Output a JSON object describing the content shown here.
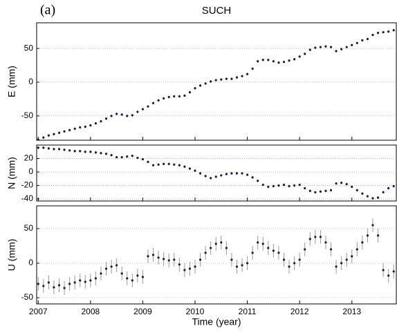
{
  "chart_data": [
    {
      "type": "scatter",
      "panel_label": "(a)",
      "title": "SUCH",
      "ylabel": "E (mm)",
      "color": "#1a1a4e",
      "error_color": "#999999",
      "error": 2,
      "grid": true,
      "xlim": [
        2006.97,
        2013.85
      ],
      "xticks": [
        2007,
        2008,
        2009,
        2010,
        2011,
        2012,
        2013
      ],
      "ylim": [
        -86,
        88
      ],
      "yticks": [
        -50,
        0,
        50
      ],
      "x": [
        2007.0,
        2007.1,
        2007.2,
        2007.3,
        2007.4,
        2007.5,
        2007.6,
        2007.7,
        2007.8,
        2007.9,
        2008.0,
        2008.1,
        2008.2,
        2008.3,
        2008.4,
        2008.5,
        2008.6,
        2008.7,
        2008.8,
        2008.9,
        2009.0,
        2009.1,
        2009.2,
        2009.3,
        2009.4,
        2009.5,
        2009.6,
        2009.7,
        2009.8,
        2009.9,
        2010.0,
        2010.1,
        2010.2,
        2010.3,
        2010.4,
        2010.5,
        2010.6,
        2010.7,
        2010.8,
        2010.9,
        2011.0,
        2011.1,
        2011.2,
        2011.3,
        2011.4,
        2011.5,
        2011.6,
        2011.7,
        2011.8,
        2011.9,
        2012.0,
        2012.1,
        2012.2,
        2012.3,
        2012.4,
        2012.5,
        2012.6,
        2012.7,
        2012.8,
        2012.9,
        2013.0,
        2013.1,
        2013.2,
        2013.3,
        2013.4,
        2013.5,
        2013.6,
        2013.7,
        2013.8
      ],
      "values": [
        -85,
        -82,
        -79,
        -77,
        -75,
        -73,
        -71,
        -69,
        -67,
        -66,
        -64,
        -61,
        -58,
        -54,
        -50,
        -47,
        -48,
        -50,
        -49,
        -44,
        -40,
        -36,
        -31,
        -27,
        -24,
        -22,
        -21,
        -21,
        -20,
        -15,
        -9,
        -5,
        -2,
        1,
        3,
        4,
        5,
        5,
        7,
        9,
        12,
        20,
        31,
        33,
        33,
        31,
        29,
        30,
        32,
        34,
        38,
        42,
        48,
        51,
        52,
        53,
        52,
        46,
        49,
        52,
        55,
        58,
        62,
        64,
        70,
        73,
        74,
        75,
        77
      ]
    },
    {
      "type": "scatter",
      "ylabel": "N (mm)",
      "color": "#1a1a4e",
      "error_color": "#999999",
      "error": 2,
      "grid": true,
      "xlim": [
        2006.97,
        2013.85
      ],
      "xticks": [
        2007,
        2008,
        2009,
        2010,
        2011,
        2012,
        2013
      ],
      "ylim": [
        -43,
        40
      ],
      "yticks": [
        -40,
        -20,
        0,
        20
      ],
      "x": [
        2007.0,
        2007.1,
        2007.2,
        2007.3,
        2007.4,
        2007.5,
        2007.6,
        2007.7,
        2007.8,
        2007.9,
        2008.0,
        2008.1,
        2008.2,
        2008.3,
        2008.4,
        2008.5,
        2008.6,
        2008.7,
        2008.8,
        2008.9,
        2009.0,
        2009.1,
        2009.2,
        2009.3,
        2009.4,
        2009.5,
        2009.6,
        2009.7,
        2009.8,
        2009.9,
        2010.0,
        2010.1,
        2010.2,
        2010.3,
        2010.4,
        2010.5,
        2010.6,
        2010.7,
        2010.8,
        2010.9,
        2011.0,
        2011.1,
        2011.2,
        2011.3,
        2011.4,
        2011.5,
        2011.6,
        2011.7,
        2011.8,
        2011.9,
        2012.0,
        2012.1,
        2012.2,
        2012.3,
        2012.4,
        2012.5,
        2012.6,
        2012.7,
        2012.8,
        2012.9,
        2013.0,
        2013.1,
        2013.2,
        2013.3,
        2013.4,
        2013.5,
        2013.6,
        2013.7,
        2013.8
      ],
      "values": [
        36,
        36,
        35,
        34,
        34,
        33,
        32,
        31,
        31,
        30,
        30,
        29,
        28,
        27,
        25,
        22,
        22,
        23,
        24,
        21,
        19,
        15,
        10,
        11,
        12,
        12,
        11,
        10,
        8,
        5,
        2,
        -2,
        -6,
        -9,
        -7,
        -5,
        -3,
        -2,
        -2,
        -2,
        -4,
        -8,
        -13,
        -19,
        -22,
        -21,
        -20,
        -19,
        -21,
        -20,
        -19,
        -24,
        -28,
        -30,
        -29,
        -28,
        -27,
        -17,
        -16,
        -18,
        -22,
        -27,
        -32,
        -36,
        -39,
        -38,
        -30,
        -24,
        -21
      ]
    },
    {
      "type": "scatter",
      "ylabel": "U (mm)",
      "xlabel": "Time (year)",
      "color": "#1a1a4e",
      "error_color": "#999999",
      "error": 10,
      "grid": true,
      "xlim": [
        2006.97,
        2013.85
      ],
      "xticks": [
        2007,
        2008,
        2009,
        2010,
        2011,
        2012,
        2013
      ],
      "ylim": [
        -59,
        83
      ],
      "yticks": [
        -50,
        0,
        50
      ],
      "x": [
        2007.0,
        2007.1,
        2007.2,
        2007.3,
        2007.4,
        2007.5,
        2007.6,
        2007.7,
        2007.8,
        2007.9,
        2008.0,
        2008.1,
        2008.2,
        2008.3,
        2008.4,
        2008.5,
        2008.6,
        2008.7,
        2008.8,
        2008.9,
        2009.0,
        2009.1,
        2009.2,
        2009.3,
        2009.4,
        2009.5,
        2009.6,
        2009.7,
        2009.8,
        2009.9,
        2010.0,
        2010.1,
        2010.2,
        2010.3,
        2010.4,
        2010.5,
        2010.6,
        2010.7,
        2010.8,
        2010.9,
        2011.0,
        2011.1,
        2011.2,
        2011.3,
        2011.4,
        2011.5,
        2011.6,
        2011.7,
        2011.8,
        2011.9,
        2012.0,
        2012.1,
        2012.2,
        2012.3,
        2012.4,
        2012.5,
        2012.6,
        2012.7,
        2012.8,
        2012.9,
        2013.0,
        2013.1,
        2013.2,
        2013.3,
        2013.4,
        2013.5,
        2013.6,
        2013.7,
        2013.8
      ],
      "values": [
        -30,
        -33,
        -28,
        -35,
        -32,
        -36,
        -30,
        -28,
        -25,
        -27,
        -25,
        -22,
        -15,
        -8,
        -5,
        -3,
        -15,
        -22,
        -25,
        -18,
        -20,
        10,
        12,
        8,
        6,
        4,
        5,
        -2,
        -10,
        -8,
        -5,
        5,
        15,
        22,
        28,
        30,
        22,
        5,
        -5,
        -3,
        0,
        15,
        30,
        28,
        22,
        18,
        15,
        5,
        -5,
        0,
        5,
        20,
        35,
        38,
        38,
        30,
        20,
        -5,
        0,
        5,
        10,
        20,
        30,
        40,
        55,
        40,
        -10,
        -18,
        -12
      ]
    }
  ]
}
